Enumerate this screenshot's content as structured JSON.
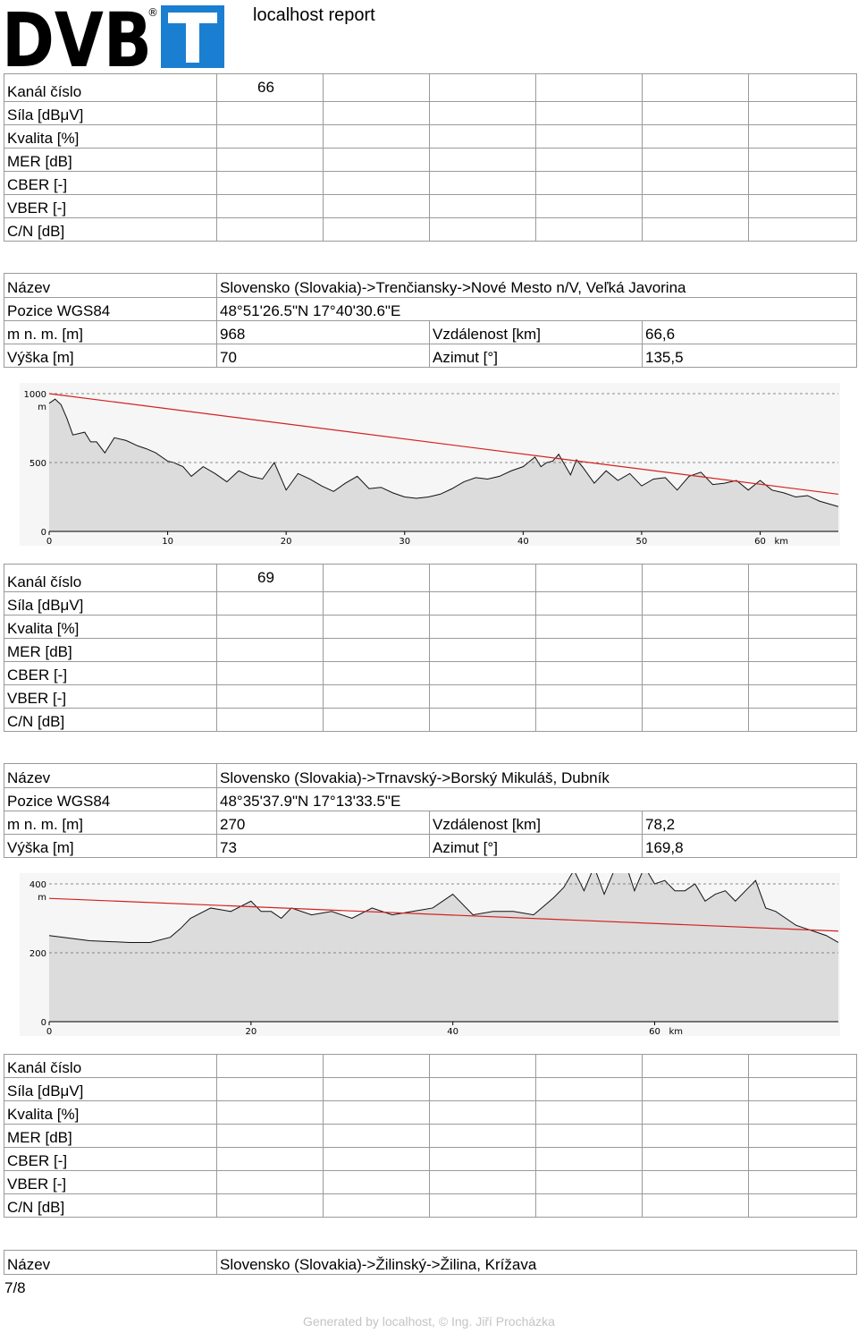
{
  "report_title": "localhost report",
  "logo": {
    "left_text": "DVB",
    "right_text": "T",
    "mark": "®",
    "accent": "#1a7fd1"
  },
  "row_labels": [
    "Kanál číslo",
    "Síla [dBμV]",
    "Kvalita [%]",
    "MER [dB]",
    "CBER [-]",
    "VBER [-]",
    "C/N [dB]"
  ],
  "tx_labels": {
    "name": "Název",
    "pos": "Pozice WGS84",
    "alt": "m n. m. [m]",
    "height": "Výška [m]",
    "dist": "Vzdálenost [km]",
    "azimuth": "Azimut [°]"
  },
  "channels": [
    {
      "number": "66"
    },
    {
      "number": "69"
    },
    {
      "number": ""
    }
  ],
  "transmitters": [
    {
      "name": "Slovensko (Slovakia)->Trenčiansky->Nové Mesto n/V, Veľká Javorina",
      "pos": "48°51'26.5\"N 17°40'30.6\"E",
      "alt": "968",
      "dist": "66,6",
      "height": "70",
      "azimuth": "135,5"
    },
    {
      "name": "Slovensko (Slovakia)->Trnavský->Borský Mikuláš, Dubník",
      "pos": "48°35'37.9\"N 17°13'33.5\"E",
      "alt": "270",
      "dist": "78,2",
      "height": "73",
      "azimuth": "169,8"
    },
    {
      "name": "Slovensko (Slovakia)->Žilinský->Žilina, Krížava"
    }
  ],
  "chart_data": [
    {
      "type": "area",
      "xlabel_unit": "km",
      "ylabel_unit": "m",
      "xlim": [
        0,
        66.6
      ],
      "ylim": [
        0,
        1000
      ],
      "xticks": [
        0,
        10,
        20,
        30,
        40,
        50,
        60
      ],
      "yticks": [
        0,
        500,
        1000
      ],
      "series": [
        {
          "x": [
            0,
            0.5,
            1,
            1.5,
            2,
            3,
            3.5,
            4,
            4.7,
            5.5,
            6.5,
            7.5,
            8.2,
            9,
            10,
            10.5,
            11.3,
            12,
            13,
            14,
            15,
            16,
            17,
            18,
            19,
            20,
            21,
            22,
            23,
            24,
            25,
            26,
            27,
            28,
            29,
            30,
            31,
            32,
            33,
            34,
            35,
            36,
            37,
            38,
            39,
            40,
            41,
            41.5,
            42,
            42.5,
            43,
            44,
            44.5,
            45,
            46,
            47,
            48,
            49,
            50,
            51,
            52,
            53,
            54,
            55,
            56,
            57,
            58,
            59,
            60,
            61,
            62,
            63,
            64,
            65,
            66.6
          ],
          "y": [
            930,
            960,
            920,
            820,
            700,
            720,
            650,
            650,
            570,
            680,
            660,
            620,
            600,
            570,
            510,
            500,
            470,
            400,
            470,
            420,
            360,
            440,
            400,
            380,
            500,
            300,
            420,
            380,
            330,
            290,
            350,
            400,
            310,
            320,
            280,
            250,
            240,
            250,
            270,
            310,
            360,
            390,
            380,
            400,
            440,
            470,
            540,
            470,
            500,
            510,
            560,
            410,
            520,
            470,
            350,
            440,
            370,
            420,
            330,
            380,
            390,
            300,
            400,
            430,
            340,
            350,
            370,
            300,
            370,
            300,
            280,
            250,
            260,
            220,
            180
          ]
        }
      ],
      "los": {
        "from": [
          0,
          1000
        ],
        "to": [
          66.6,
          270
        ]
      }
    },
    {
      "type": "area",
      "xlabel_unit": "km",
      "ylabel_unit": "m",
      "xlim": [
        0,
        78.2
      ],
      "ylim": [
        0,
        400
      ],
      "xticks": [
        0,
        20,
        40,
        60
      ],
      "yticks": [
        0,
        200,
        400
      ],
      "series": [
        {
          "x": [
            0,
            4,
            8,
            10,
            12,
            13,
            14,
            16,
            18,
            20,
            21,
            22,
            23,
            24,
            26,
            28,
            30,
            32,
            34,
            36,
            38,
            40,
            42,
            44,
            46,
            48,
            50,
            51,
            52,
            53,
            54,
            55,
            56,
            57,
            58,
            59,
            60,
            61,
            62,
            63,
            64,
            65,
            66,
            67,
            68,
            69,
            70,
            71,
            72,
            73,
            74,
            75,
            76,
            77,
            78.2
          ],
          "y": [
            250,
            235,
            230,
            230,
            245,
            270,
            300,
            330,
            320,
            350,
            320,
            320,
            300,
            330,
            310,
            320,
            300,
            330,
            310,
            320,
            330,
            370,
            310,
            320,
            320,
            310,
            360,
            390,
            440,
            380,
            450,
            370,
            440,
            470,
            380,
            450,
            400,
            410,
            380,
            380,
            400,
            350,
            370,
            380,
            350,
            380,
            410,
            330,
            320,
            300,
            280,
            270,
            260,
            250,
            230
          ]
        }
      ],
      "los": {
        "from": [
          0,
          358
        ],
        "to": [
          78.2,
          263
        ]
      }
    }
  ]
}
